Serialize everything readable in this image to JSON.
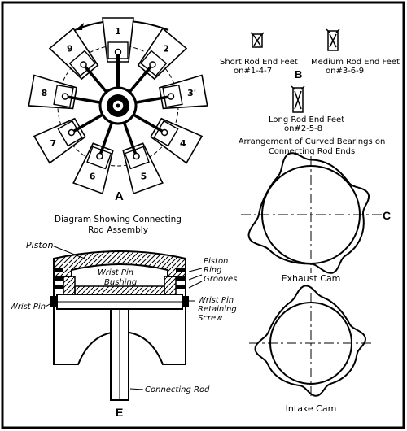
{
  "figure_a": {
    "letter": "A",
    "caption_line1": "Diagram Showing Connecting",
    "caption_line2": "Rod Assembly",
    "cylinders": [
      "1",
      "2",
      "3'",
      "4",
      "5",
      "6",
      "7",
      "8",
      "9"
    ]
  },
  "figure_b": {
    "letter": "B",
    "short_line1": "Short Rod End Feet",
    "short_line2": "on#1-4-7",
    "medium_line1": "Medium Rod End Feet",
    "medium_line2": "on#3-6-9",
    "long_line1": "Long Rod End Feet",
    "long_line2": "on#2-5-8",
    "caption_line1": "Arrangement of Curved Bearings on",
    "caption_line2": "Connecting Rod Ends"
  },
  "figure_c": {
    "letter": "C",
    "exhaust_label": "Exhaust Cam",
    "intake_label": "Intake Cam"
  },
  "figure_e": {
    "letter": "E",
    "piston": "Piston",
    "wrist_pin": "Wrist Pin",
    "wrist_pin_bushing_1": "Wrist Pin",
    "wrist_pin_bushing_2": "Bushing",
    "ring_grooves_1": "Piston",
    "ring_grooves_2": "Ring",
    "ring_grooves_3": "Grooves",
    "retaining_1": "Wrist Pin",
    "retaining_2": "Retaining",
    "retaining_3": "Screw",
    "connecting_rod": "Connecting Rod"
  }
}
